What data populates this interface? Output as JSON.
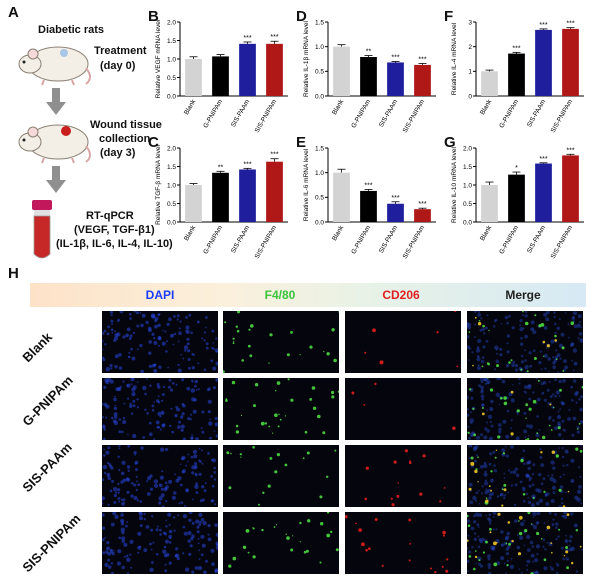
{
  "panel_letters": [
    "A",
    "B",
    "C",
    "D",
    "E",
    "F",
    "G",
    "H"
  ],
  "schematic": {
    "title": "Diabetic rats",
    "treatment": "Treatment",
    "treatment_day": "(day 0)",
    "wound1": "Wound tissue",
    "wound2": "collection",
    "wound_day": "(day 3)",
    "assay": "RT-qPCR",
    "genes1": "(VEGF, TGF-β1)",
    "genes2": "(IL-1β, IL-6, IL-4, IL-10)"
  },
  "colors": {
    "Blank": "#d3d3d3",
    "G-PNIPAm": "#000000",
    "SIS-PAAm": "#1f1f9e",
    "SIS-PNIPAm": "#b01818",
    "banner_dapi": "#1a3cff",
    "banner_f480": "#3cc43c",
    "banner_cd206": "#e02020",
    "banner_merge": "#222222"
  },
  "chart_data": [
    {
      "panel": "B",
      "type": "bar",
      "categories": [
        "Blank",
        "G-PNIPAm",
        "SIS-PAAm",
        "SIS-PNIPAm"
      ],
      "values": [
        1.0,
        1.07,
        1.41,
        1.41
      ],
      "errors": [
        0.06,
        0.05,
        0.05,
        0.07
      ],
      "significance": [
        "",
        "",
        "***",
        "***"
      ],
      "ylabel": "Relative VEGF mRNA level",
      "ylim": [
        0,
        2.0
      ],
      "yticks": [
        "0.0",
        "0.5",
        "1.0",
        "1.5",
        "2.0"
      ]
    },
    {
      "panel": "C",
      "type": "bar",
      "categories": [
        "Blank",
        "G-PNIPAm",
        "SIS-PAAm",
        "SIS-PNIPAm"
      ],
      "values": [
        1.0,
        1.33,
        1.42,
        1.63
      ],
      "errors": [
        0.04,
        0.04,
        0.03,
        0.08
      ],
      "significance": [
        "",
        "**",
        "***",
        "***"
      ],
      "ylabel": "Relative TGF-β mRNA level",
      "ylim": [
        0,
        2.0
      ],
      "yticks": [
        "0.0",
        "0.5",
        "1.0",
        "1.5",
        "2.0"
      ]
    },
    {
      "panel": "D",
      "type": "bar",
      "categories": [
        "Blank",
        "G-PNIPAm",
        "SIS-PAAm",
        "SIS-PNIPAm"
      ],
      "values": [
        1.0,
        0.79,
        0.68,
        0.63
      ],
      "errors": [
        0.04,
        0.03,
        0.02,
        0.03
      ],
      "significance": [
        "",
        "**",
        "***",
        "***"
      ],
      "ylabel": "Relative IL-1β mRNA level",
      "ylim": [
        0,
        1.5
      ],
      "yticks": [
        "0.0",
        "0.5",
        "1.0",
        "1.5"
      ]
    },
    {
      "panel": "E",
      "type": "bar",
      "categories": [
        "Blank",
        "G-PNIPAm",
        "SIS-PAAm",
        "SIS-PNIPAm"
      ],
      "values": [
        1.0,
        0.63,
        0.37,
        0.26
      ],
      "errors": [
        0.07,
        0.03,
        0.04,
        0.02
      ],
      "significance": [
        "",
        "***",
        "***",
        "***"
      ],
      "ylabel": "Relative IL-6 mRNA level",
      "ylim": [
        0,
        1.5
      ],
      "yticks": [
        "0.0",
        "0.5",
        "1.0",
        "1.5"
      ]
    },
    {
      "panel": "F",
      "type": "bar",
      "categories": [
        "Blank",
        "G-PNIPAm",
        "SIS-PAAm",
        "SIS-PNIPAm"
      ],
      "values": [
        1.0,
        1.72,
        2.68,
        2.72
      ],
      "errors": [
        0.05,
        0.05,
        0.04,
        0.05
      ],
      "significance": [
        "",
        "***",
        "***",
        "***"
      ],
      "ylabel": "Relative IL-4 mRNA level",
      "ylim": [
        0,
        3
      ],
      "yticks": [
        "0",
        "1",
        "2",
        "3"
      ]
    },
    {
      "panel": "G",
      "type": "bar",
      "categories": [
        "Blank",
        "G-PNIPAm",
        "SIS-PAAm",
        "SIS-PNIPAm"
      ],
      "values": [
        1.0,
        1.28,
        1.58,
        1.8
      ],
      "errors": [
        0.08,
        0.07,
        0.02,
        0.03
      ],
      "significance": [
        "",
        "*",
        "***",
        "***"
      ],
      "ylabel": "Relative IL-10 mRNA level",
      "ylim": [
        0,
        2.0
      ],
      "yticks": [
        "0.0",
        "0.5",
        "1.0",
        "1.5",
        "2.0"
      ]
    }
  ],
  "microscopy": {
    "columns": [
      "DAPI",
      "F4/80",
      "CD206",
      "Merge"
    ],
    "rows": [
      "Blank",
      "G-PNIPAm",
      "SIS-PAAm",
      "SIS-PNIPAm"
    ]
  }
}
